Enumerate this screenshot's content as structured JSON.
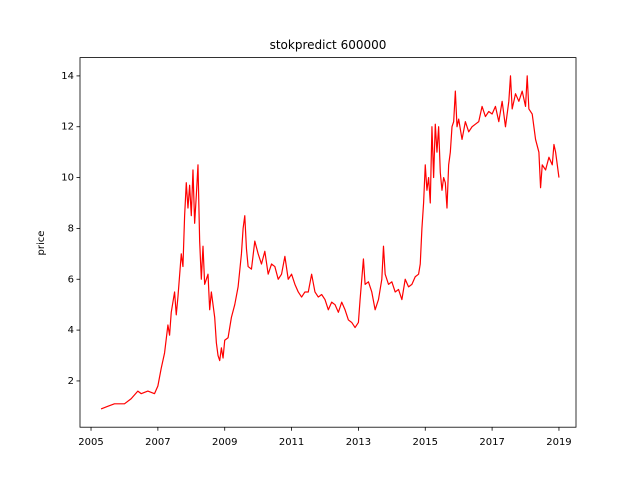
{
  "chart_data": {
    "type": "line",
    "title": "stokpredict 600000",
    "y_label": "price",
    "x": [
      2005.3,
      2005.5,
      2005.7,
      2006.0,
      2006.2,
      2006.4,
      2006.5,
      2006.7,
      2006.9,
      2007.0,
      2007.1,
      2007.2,
      2007.3,
      2007.35,
      2007.4,
      2007.5,
      2007.55,
      2007.6,
      2007.7,
      2007.75,
      2007.8,
      2007.85,
      2007.9,
      2007.95,
      2008.0,
      2008.05,
      2008.1,
      2008.15,
      2008.2,
      2008.25,
      2008.3,
      2008.35,
      2008.4,
      2008.5,
      2008.55,
      2008.6,
      2008.7,
      2008.75,
      2008.8,
      2008.85,
      2008.9,
      2008.95,
      2009.0,
      2009.1,
      2009.2,
      2009.3,
      2009.4,
      2009.5,
      2009.55,
      2009.6,
      2009.65,
      2009.7,
      2009.8,
      2009.9,
      2010.0,
      2010.1,
      2010.2,
      2010.3,
      2010.4,
      2010.5,
      2010.6,
      2010.7,
      2010.8,
      2010.9,
      2011.0,
      2011.1,
      2011.2,
      2011.3,
      2011.4,
      2011.5,
      2011.6,
      2011.7,
      2011.8,
      2011.9,
      2012.0,
      2012.1,
      2012.2,
      2012.3,
      2012.4,
      2012.5,
      2012.6,
      2012.7,
      2012.8,
      2012.9,
      2013.0,
      2013.05,
      2013.1,
      2013.15,
      2013.2,
      2013.3,
      2013.4,
      2013.5,
      2013.6,
      2013.7,
      2013.75,
      2013.8,
      2013.9,
      2014.0,
      2014.1,
      2014.2,
      2014.3,
      2014.4,
      2014.5,
      2014.6,
      2014.7,
      2014.8,
      2014.85,
      2014.9,
      2014.95,
      2015.0,
      2015.05,
      2015.1,
      2015.15,
      2015.2,
      2015.25,
      2015.3,
      2015.35,
      2015.4,
      2015.45,
      2015.5,
      2015.55,
      2015.6,
      2015.65,
      2015.7,
      2015.75,
      2015.8,
      2015.85,
      2015.9,
      2015.95,
      2016.0,
      2016.1,
      2016.2,
      2016.3,
      2016.4,
      2016.5,
      2016.6,
      2016.7,
      2016.8,
      2016.9,
      2017.0,
      2017.1,
      2017.2,
      2017.3,
      2017.35,
      2017.4,
      2017.5,
      2017.55,
      2017.6,
      2017.7,
      2017.8,
      2017.9,
      2018.0,
      2018.05,
      2018.1,
      2018.2,
      2018.3,
      2018.4,
      2018.45,
      2018.5,
      2018.6,
      2018.7,
      2018.8,
      2018.85,
      2018.9,
      2018.95,
      2019.0
    ],
    "series": [
      {
        "color": "#ff0000",
        "values": [
          0.9,
          1.0,
          1.1,
          1.1,
          1.3,
          1.6,
          1.5,
          1.6,
          1.5,
          1.8,
          2.5,
          3.1,
          4.2,
          3.8,
          4.7,
          5.5,
          4.6,
          5.3,
          7.0,
          6.5,
          8.5,
          9.8,
          8.8,
          9.7,
          8.5,
          10.3,
          8.2,
          9.3,
          10.5,
          7.5,
          6.0,
          7.3,
          5.8,
          6.2,
          4.8,
          5.5,
          4.5,
          3.5,
          3.0,
          2.8,
          3.3,
          2.9,
          3.6,
          3.7,
          4.5,
          5.0,
          5.7,
          7.0,
          8.0,
          8.5,
          7.2,
          6.5,
          6.4,
          7.5,
          7.0,
          6.6,
          7.1,
          6.2,
          6.6,
          6.5,
          6.0,
          6.2,
          6.9,
          6.0,
          6.2,
          5.8,
          5.5,
          5.3,
          5.5,
          5.5,
          6.2,
          5.5,
          5.3,
          5.4,
          5.2,
          4.8,
          5.1,
          5.0,
          4.7,
          5.1,
          4.8,
          4.4,
          4.3,
          4.1,
          4.3,
          5.2,
          6.0,
          6.8,
          5.8,
          5.9,
          5.5,
          4.8,
          5.2,
          6.0,
          7.3,
          6.2,
          5.8,
          5.9,
          5.5,
          5.6,
          5.2,
          6.0,
          5.7,
          5.8,
          6.1,
          6.2,
          6.6,
          8.0,
          9.0,
          10.5,
          9.5,
          10.0,
          9.0,
          12.0,
          10.0,
          12.1,
          11.0,
          12.0,
          10.2,
          9.5,
          10.0,
          9.8,
          8.8,
          10.5,
          11.0,
          12.0,
          12.2,
          13.4,
          12.0,
          12.3,
          11.5,
          12.2,
          11.8,
          12.0,
          12.1,
          12.2,
          12.8,
          12.4,
          12.6,
          12.5,
          12.8,
          12.2,
          13.0,
          12.5,
          12.0,
          13.0,
          14.0,
          12.7,
          13.3,
          13.0,
          13.4,
          12.8,
          14.0,
          12.7,
          12.5,
          11.5,
          11.0,
          9.6,
          10.5,
          10.3,
          10.8,
          10.5,
          11.3,
          11.0,
          10.5,
          10.0
        ]
      }
    ],
    "xlim": [
      2004.67,
      2019.51
    ],
    "xticks": [
      2005,
      2007,
      2009,
      2011,
      2013,
      2015,
      2017,
      2019
    ],
    "ylim": [
      0.18,
      14.72
    ],
    "yticks": [
      2,
      4,
      6,
      8,
      10,
      12,
      14
    ]
  }
}
